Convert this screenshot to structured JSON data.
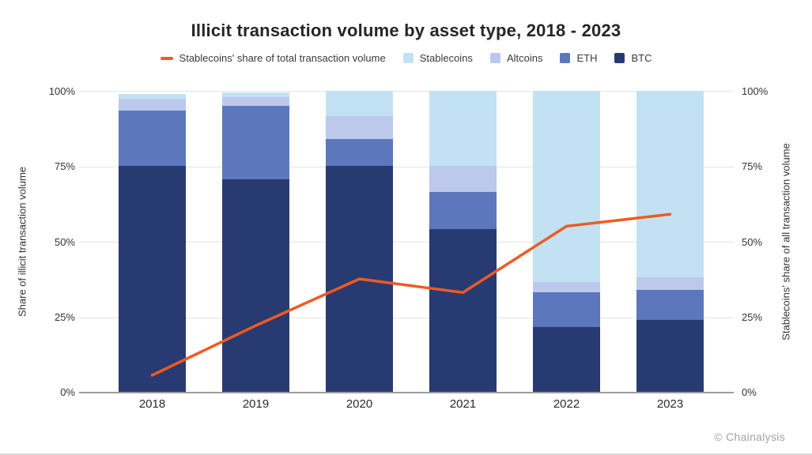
{
  "title": "Illicit transaction volume by asset type, 2018 - 2023",
  "legend": {
    "line_item": {
      "label": "Stablecoins' share of total transaction volume",
      "color": "#f05a22"
    },
    "items": [
      {
        "label": "Stablecoins",
        "color": "#c2e2f4"
      },
      {
        "label": "Altcoins",
        "color": "#bdc9ec"
      },
      {
        "label": "ETH",
        "color": "#5d77bd"
      },
      {
        "label": "BTC",
        "color": "#283a72"
      }
    ]
  },
  "axes": {
    "left": {
      "label": "Share of illicit transaction volume",
      "ticks": [
        "100%",
        "75%",
        "50%",
        "25%",
        "0%"
      ]
    },
    "right": {
      "label": "Stablecoins' share of all transaction volume",
      "ticks": [
        "100%",
        "75%",
        "50%",
        "25%",
        "0%"
      ]
    }
  },
  "chart_data": {
    "type": "bar",
    "subtype": "stacked-bars-with-line-overlay",
    "title": "Illicit transaction volume by asset type, 2018 - 2023",
    "categories": [
      "2018",
      "2019",
      "2020",
      "2021",
      "2022",
      "2023"
    ],
    "unit": "%",
    "ylim_left": [
      0,
      100
    ],
    "ylim_right": [
      0,
      100
    ],
    "grid": "horizontal-25pct-steps",
    "legend_position": "top",
    "series": [
      {
        "name": "BTC",
        "color": "#283a72",
        "values": [
          75,
          70.5,
          75,
          54,
          21.5,
          24
        ]
      },
      {
        "name": "ETH",
        "color": "#5d77bd",
        "values": [
          18.5,
          24.5,
          9,
          12.5,
          11.5,
          10
        ]
      },
      {
        "name": "Altcoins",
        "color": "#bdc9ec",
        "values": [
          4,
          3,
          7.5,
          8.5,
          3.5,
          4
        ]
      },
      {
        "name": "Stablecoins",
        "color": "#c2e2f4",
        "values": [
          1.5,
          1.5,
          8.5,
          25,
          63.5,
          62
        ]
      }
    ],
    "line_series": {
      "name": "Stablecoins' share of total transaction volume",
      "color": "#f05a22",
      "axis": "right",
      "values": [
        5.5,
        22,
        37.5,
        33,
        55,
        59
      ]
    }
  },
  "footer": {
    "attribution": "© Chainalysis"
  },
  "colors": {
    "background": "#ffffff",
    "grid": "#e4e4e4",
    "axis": "#9b9b9b"
  }
}
